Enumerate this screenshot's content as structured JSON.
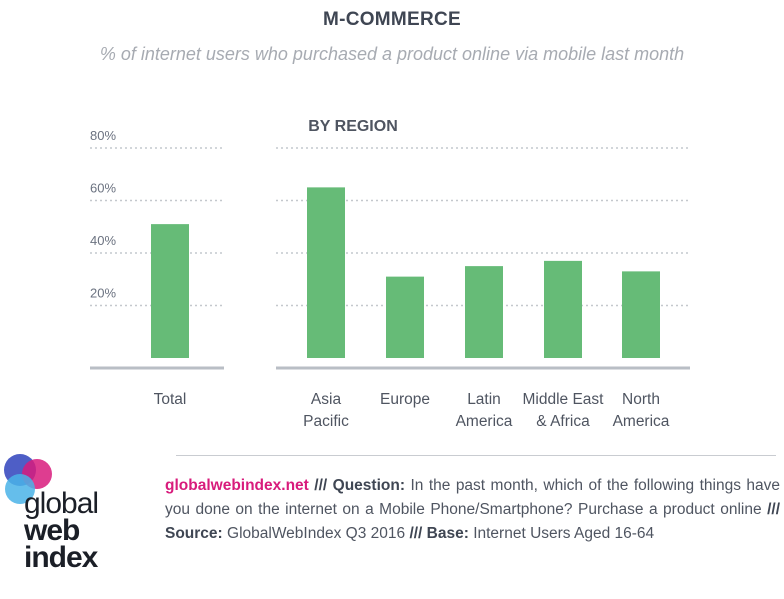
{
  "header": {
    "title": "M-COMMERCE",
    "subtitle": "% of internet users who purchased a product online via mobile last month"
  },
  "chart_data": {
    "type": "bar",
    "group_label": "BY REGION",
    "ylim": [
      0,
      80
    ],
    "yticks": [
      20,
      40,
      60,
      80
    ],
    "ytick_labels": [
      "20%",
      "40%",
      "60%",
      "80%"
    ],
    "grid": "dotted horizontal",
    "bar_color": "#66bb77",
    "groups": [
      {
        "name": "",
        "categories": [
          {
            "label": [
              "Total"
            ],
            "value": 51
          }
        ]
      },
      {
        "name": "BY REGION",
        "categories": [
          {
            "label": [
              "Asia",
              "Pacific"
            ],
            "value": 65
          },
          {
            "label": [
              "Europe"
            ],
            "value": 31
          },
          {
            "label": [
              "Latin",
              "America"
            ],
            "value": 35
          },
          {
            "label": [
              "Middle East",
              "& Africa"
            ],
            "value": 37
          },
          {
            "label": [
              "North",
              "America"
            ],
            "value": 33
          }
        ]
      }
    ]
  },
  "logo": {
    "line1": "global",
    "line2": "web",
    "line3": "index",
    "colors": [
      "#3b4cc0",
      "#d81b7c",
      "#4ab3e8",
      "#7b3fa8"
    ]
  },
  "footer": {
    "site": "globalwebindex.net",
    "sep1": "///",
    "question_label": "Question:",
    "question_text": "In the past month, which of the following things have you done on the internet on a Mobile Phone/Smartphone? Purchase a product online",
    "sep2": "///",
    "source_label": "Source:",
    "source_text": "GlobalWebIndex Q3 2016",
    "sep3": "///",
    "base_label": "Base:",
    "base_text": "Internet Users Aged 16-64"
  }
}
